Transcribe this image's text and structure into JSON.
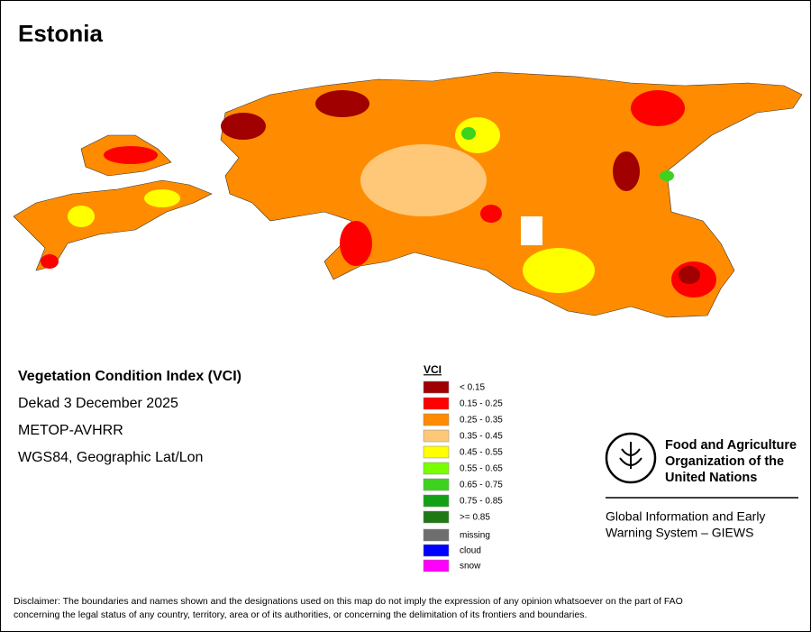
{
  "header": {
    "title": "Estonia"
  },
  "info": {
    "lines": [
      "Vegetation Condition Index (VCI)",
      "Dekad 3 December 2025",
      "METOP-AVHRR",
      "WGS84, Geographic Lat/Lon"
    ]
  },
  "legend": {
    "title": "VCI",
    "items": [
      {
        "label": "< 0.15",
        "color": "#a00000"
      },
      {
        "label": "0.15 - 0.25",
        "color": "#ff0000"
      },
      {
        "label": "0.25 - 0.35",
        "color": "#ff8c00"
      },
      {
        "label": "0.35 - 0.45",
        "color": "#ffc878"
      },
      {
        "label": "0.45 - 0.55",
        "color": "#ffff00"
      },
      {
        "label": "0.55 - 0.65",
        "color": "#78ff00"
      },
      {
        "label": "0.65 - 0.75",
        "color": "#3cd21e"
      },
      {
        "label": "0.75 - 0.85",
        "color": "#14a014"
      },
      {
        "label": ">= 0.85",
        "color": "#1e7814"
      }
    ],
    "extra": [
      {
        "label": "missing",
        "color": "#6e6e6e"
      },
      {
        "label": "cloud",
        "color": "#0000ff"
      },
      {
        "label": "snow",
        "color": "#ff00ff"
      }
    ]
  },
  "logo": {
    "fao": [
      "Food and Agriculture",
      "Organization of the",
      "United Nations"
    ],
    "giews": [
      "Global Information and Early",
      "Warning System – GIEWS"
    ]
  },
  "disclaimer": [
    "Disclaimer: The boundaries and names shown and the designations used on this map do not imply the expression of any opinion whatsoever on the part of FAO",
    "concerning the legal status of any country, territory, area or of its authorities, or concerning the delimitation of its frontiers and boundaries."
  ]
}
